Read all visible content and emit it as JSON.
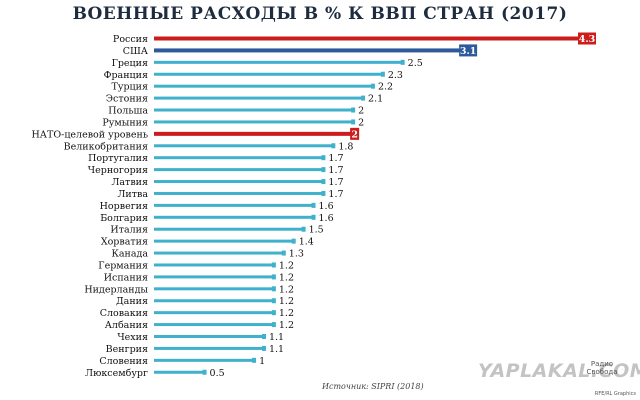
{
  "title": "ВОЕННЫЕ РАСХОДЫ В % К ВВП СТРАН (2017)",
  "source": "Источник: SIPRI (2018)",
  "watermark": "YAPLAKAL.COM",
  "brand": "Радио Свобода",
  "credit": "RFE/RL Graphics",
  "colors": {
    "default": "#3fb1cd",
    "russia": "#cc1c1c",
    "usa": "#2c5a9b",
    "nato": "#cc1c1c"
  },
  "chart_data": {
    "type": "bar",
    "orientation": "horizontal",
    "title": "ВОЕННЫЕ РАСХОДЫ В % К ВВП СТРАН (2017)",
    "xlabel": "",
    "ylabel": "",
    "xlim": [
      0,
      4.3
    ],
    "grid": false,
    "categories": [
      "Россия",
      "США",
      "Греция",
      "Франция",
      "Турция",
      "Эстония",
      "Польша",
      "Румыния",
      "НАТО-целевой уровень",
      "Великобритания",
      "Португалия",
      "Черногория",
      "Латвия",
      "Литва",
      "Норвегия",
      "Болгария",
      "Италия",
      "Хорватия",
      "Канада",
      "Германия",
      "Испания",
      "Нидерланды",
      "Дания",
      "Словакия",
      "Албания",
      "Чехия",
      "Венгрия",
      "Словения",
      "Люксембург"
    ],
    "values": [
      4.3,
      3.1,
      2.5,
      2.3,
      2.2,
      2.1,
      2,
      2,
      2,
      1.8,
      1.7,
      1.7,
      1.7,
      1.7,
      1.6,
      1.6,
      1.5,
      1.4,
      1.3,
      1.2,
      1.2,
      1.2,
      1.2,
      1.2,
      1.2,
      1.1,
      1.1,
      1,
      0.5
    ],
    "labels": [
      "4.3",
      "3.1",
      "2.5",
      "2.3",
      "2.2",
      "2.1",
      "2",
      "2",
      "2",
      "1.8",
      "1.7",
      "1.7",
      "1.7",
      "1.7",
      "1.6",
      "1.6",
      "1.5",
      "1.4",
      "1.3",
      "1.2",
      "1.2",
      "1.2",
      "1.2",
      "1.2",
      "1.2",
      "1.1",
      "1.1",
      "1",
      "0.5"
    ],
    "highlight": [
      "russia",
      "usa",
      "",
      "",
      "",
      "",
      "",
      "",
      "nato",
      "",
      "",
      "",
      "",
      "",
      "",
      "",
      "",
      "",
      "",
      "",
      "",
      "",
      "",
      "",
      "",
      "",
      "",
      "",
      ""
    ]
  }
}
